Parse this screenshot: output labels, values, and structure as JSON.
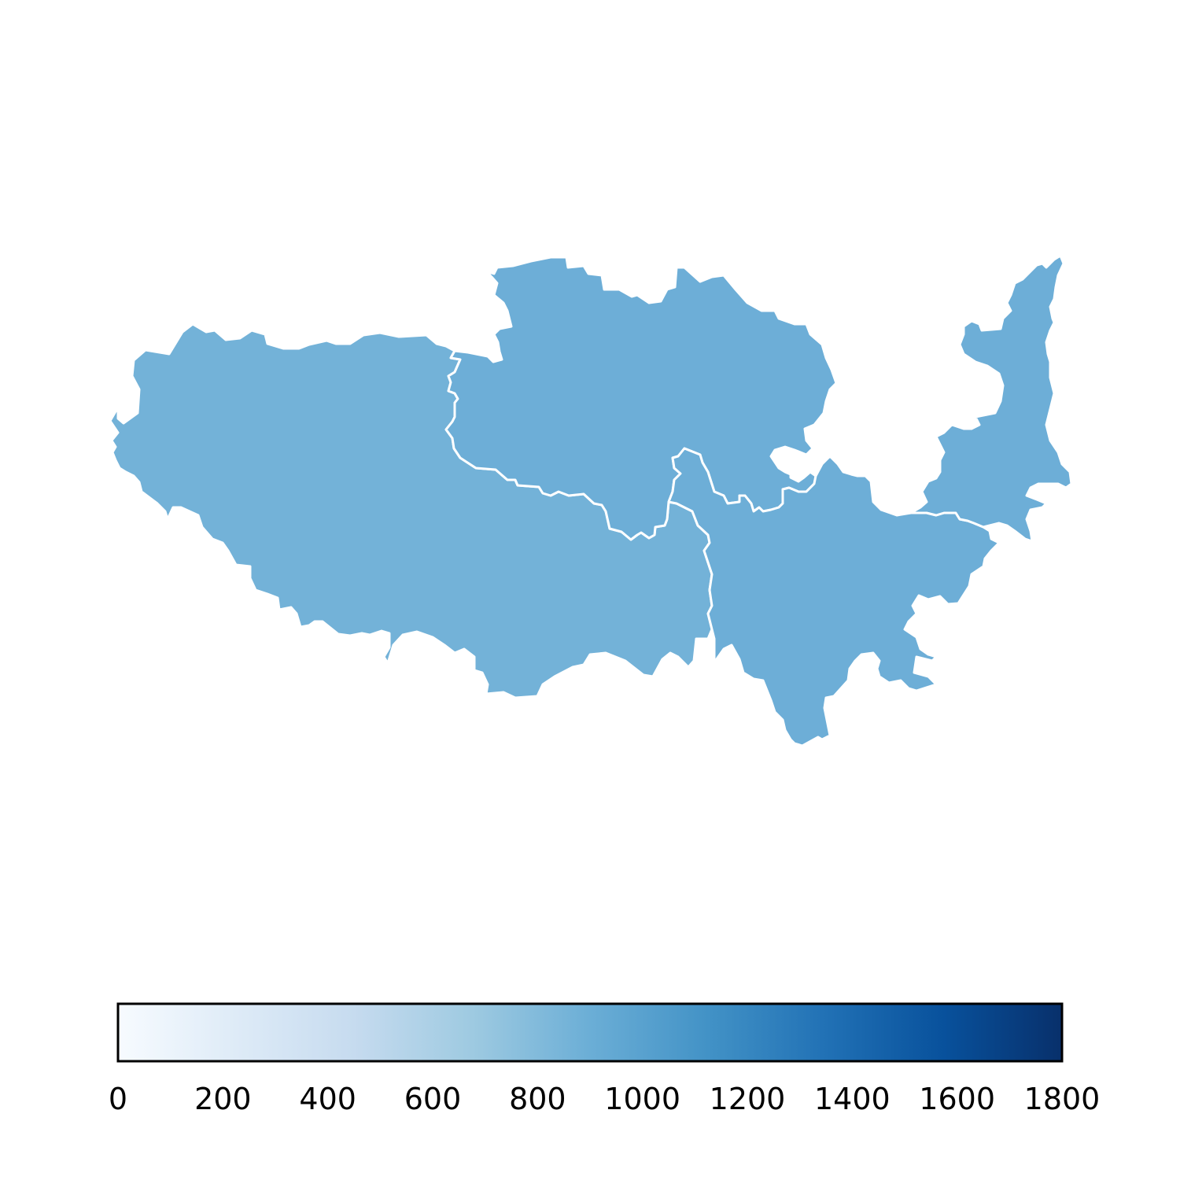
{
  "chart_data": {
    "type": "choropleth",
    "title": "",
    "regions": [
      {
        "id": "west",
        "value": 830,
        "color": "#73b2d8"
      },
      {
        "id": "north",
        "value": 850,
        "color": "#6daed7"
      },
      {
        "id": "southeast",
        "value": 850,
        "color": "#6daed7"
      },
      {
        "id": "east",
        "value": 850,
        "color": "#6daed7"
      }
    ],
    "colorbar": {
      "min": 0,
      "max": 1800,
      "orientation": "horizontal",
      "colormap": "Blues",
      "ticks": [
        "0",
        "200",
        "400",
        "600",
        "800",
        "1000",
        "1200",
        "1400",
        "1600",
        "1800"
      ],
      "gradient": [
        "#f7fbff",
        "#deebf7",
        "#c6dbef",
        "#9ecae1",
        "#6baed6",
        "#4292c6",
        "#2171b5",
        "#08519c",
        "#08306b"
      ]
    }
  }
}
